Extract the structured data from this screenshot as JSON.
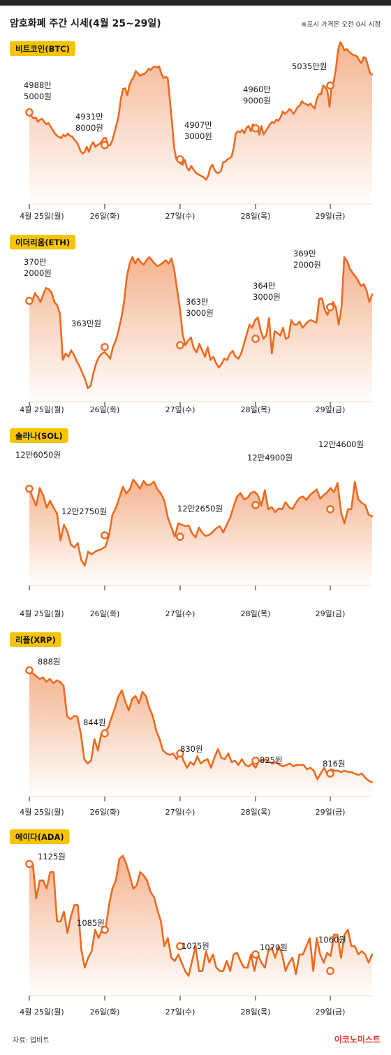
{
  "header": {
    "title": "암호화폐 주간 시세(4월 25~29일)",
    "note": "※표시 가격은 오전 0시 시점"
  },
  "footer": {
    "source": "자료: 업비트",
    "brand": "이코노미스트"
  },
  "colors": {
    "line": "#ec6a20",
    "area_top": "#f4b08a",
    "badge": "#f6c400",
    "topbar": "#2a2324"
  },
  "chart_data": [
    {
      "type": "area",
      "name": "비트코인(BTC)",
      "x_ticks": [
        "4월 25일(월)",
        "26일(화)",
        "27일(수)",
        "28일(목)",
        "29일(금)"
      ],
      "markers": [
        {
          "x": 0,
          "y": 49885000,
          "label": [
            "4988만",
            "5000원"
          ]
        },
        {
          "x": 1,
          "y": 49318000,
          "label": [
            "4931만",
            "8000원"
          ]
        },
        {
          "x": 2,
          "y": 49073000,
          "label": [
            "4907만",
            "3000원"
          ]
        },
        {
          "x": 3,
          "y": 49609000,
          "label": [
            "4960만",
            "9000원"
          ]
        },
        {
          "x": 4,
          "y": 50350000,
          "label": [
            "5035만원"
          ]
        }
      ],
      "ylim": [
        48300000,
        51200000
      ],
      "series": [
        49885000,
        49820000,
        49780000,
        49800000,
        49720000,
        49760000,
        49770000,
        49720000,
        49680000,
        49700000,
        49640000,
        49580000,
        49520000,
        49480000,
        49460000,
        49440000,
        49500000,
        49470000,
        49520000,
        49480000,
        49470000,
        49420000,
        49380000,
        49320000,
        49220000,
        49170000,
        49200000,
        49290000,
        49200000,
        49310000,
        49370000,
        49290000,
        49320000,
        49340000,
        49380000,
        49440000,
        49440000,
        49310000,
        49320000,
        49400000,
        49540000,
        49680000,
        49840000,
        50120000,
        50290000,
        50300000,
        50180000,
        50350000,
        50440000,
        50500000,
        50600000,
        50560000,
        50520000,
        50540000,
        50550000,
        50580000,
        50640000,
        50620000,
        50660000,
        50680000,
        50660000,
        50680000,
        50560000,
        50480000,
        50500000,
        50480000,
        50100000,
        49720000,
        49270000,
        49080000,
        49073000,
        49000000,
        48980000,
        49060000,
        48930000,
        48880000,
        48960000,
        48900000,
        48850000,
        48820000,
        48800000,
        48780000,
        48760000,
        48720000,
        48790000,
        48930000,
        48980000,
        48890000,
        48840000,
        48840000,
        48870000,
        49020000,
        49030000,
        49070000,
        49090000,
        49120000,
        49280000,
        49520000,
        49560000,
        49540000,
        49580000,
        49520000,
        49620000,
        49650000,
        49560000,
        49680000,
        49630000,
        49609000,
        49500000,
        49650000,
        49500000,
        49560000,
        49620000,
        49680000,
        49720000,
        49700000,
        49760000,
        49740000,
        49800000,
        49900000,
        49860000,
        49890000,
        49940000,
        49920000,
        49860000,
        49910000,
        49980000,
        50000000,
        50080000,
        50040000,
        50030000,
        50000000,
        50040000,
        49990000,
        49950000,
        50120000,
        50200000,
        50200000,
        50350000,
        50320000,
        50250000,
        49980000,
        50350000,
        50420000,
        50650000,
        50960000,
        51100000,
        51040000,
        50960000,
        50980000,
        50940000,
        50910000,
        50880000,
        50870000,
        50850000,
        50780000,
        50740000,
        50840000,
        50820000,
        50700000,
        50560000,
        50540000
      ]
    },
    {
      "type": "area",
      "name": "이더리움(ETH)",
      "x_ticks": [
        "4월 25일(월)",
        "26일(화)",
        "27일(수)",
        "28일(목)",
        "29일(금)"
      ],
      "markers": [
        {
          "x": 0,
          "y": 3702000,
          "label": [
            "370만",
            "2000원"
          ]
        },
        {
          "x": 1,
          "y": 3630000,
          "label": [
            "363만원"
          ]
        },
        {
          "x": 2,
          "y": 3633000,
          "label": [
            "363만",
            "3000원"
          ]
        },
        {
          "x": 3,
          "y": 3643000,
          "label": [
            "364만",
            "3000원"
          ]
        },
        {
          "x": 4,
          "y": 3692000,
          "label": [
            "369만",
            "2000원"
          ]
        }
      ],
      "ylim": [
        3545000,
        3795000
      ],
      "series": [
        3702000,
        3700000,
        3714000,
        3708000,
        3700000,
        3712000,
        3722000,
        3720000,
        3715000,
        3700000,
        3695000,
        3682000,
        3610000,
        3620000,
        3615000,
        3625000,
        3618000,
        3608000,
        3600000,
        3590000,
        3580000,
        3566000,
        3570000,
        3590000,
        3605000,
        3615000,
        3620000,
        3622000,
        3618000,
        3612000,
        3630000,
        3640000,
        3655000,
        3675000,
        3700000,
        3740000,
        3760000,
        3770000,
        3760000,
        3768000,
        3762000,
        3758000,
        3765000,
        3770000,
        3765000,
        3760000,
        3756000,
        3758000,
        3762000,
        3765000,
        3760000,
        3768000,
        3750000,
        3720000,
        3690000,
        3650000,
        3633000,
        3640000,
        3645000,
        3628000,
        3622000,
        3635000,
        3625000,
        3615000,
        3630000,
        3610000,
        3615000,
        3605000,
        3598000,
        3604000,
        3612000,
        3610000,
        3620000,
        3624000,
        3615000,
        3612000,
        3620000,
        3635000,
        3650000,
        3665000,
        3660000,
        3672000,
        3676000,
        3656000,
        3643000,
        3648000,
        3675000,
        3620000,
        3655000,
        3652000,
        3648000,
        3660000,
        3643000,
        3645000,
        3672000,
        3665000,
        3665000,
        3670000,
        3660000,
        3665000,
        3670000,
        3672000,
        3670000,
        3668000,
        3705000,
        3706000,
        3688000,
        3680000,
        3692000,
        3700000,
        3692000,
        3665000,
        3692000,
        3770000,
        3764000,
        3752000,
        3745000,
        3740000,
        3733000,
        3725000,
        3728000,
        3718000,
        3700000,
        3712000
      ]
    },
    {
      "type": "area",
      "name": "솔라나(SOL)",
      "x_ticks": [
        "4월 25일(월)",
        "26일(화)",
        "27일(수)",
        "28일(목)",
        "29일(금)"
      ],
      "markers": [
        {
          "x": 0,
          "y": 126050,
          "label": [
            "12만6050원"
          ]
        },
        {
          "x": 1,
          "y": 122750,
          "label": [
            "12만2750원"
          ]
        },
        {
          "x": 2,
          "y": 122650,
          "label": [
            "12만2650원"
          ]
        },
        {
          "x": 3,
          "y": 124900,
          "label": [
            "12만4900원"
          ]
        },
        {
          "x": 4,
          "y": 124600,
          "label": [
            "12만4600원"
          ]
        }
      ],
      "ylim": [
        119200,
        128500
      ],
      "series": [
        126050,
        125400,
        124850,
        126100,
        125600,
        124700,
        125200,
        124700,
        124300,
        122400,
        123500,
        123000,
        122100,
        121900,
        122200,
        121000,
        120600,
        121600,
        121400,
        121600,
        121700,
        121800,
        121950,
        122750,
        124200,
        124700,
        125400,
        126200,
        125700,
        126000,
        126700,
        126400,
        126050,
        126600,
        126300,
        126350,
        126550,
        126000,
        125700,
        125200,
        124000,
        123350,
        122650,
        123600,
        123500,
        123400,
        123450,
        122900,
        122600,
        123300,
        122900,
        122700,
        122800,
        123000,
        123250,
        123400,
        122950,
        123500,
        124000,
        124800,
        125500,
        125750,
        125300,
        125400,
        125750,
        125850,
        125600,
        124850,
        125950,
        124600,
        124750,
        124400,
        124650,
        124600,
        125100,
        124750,
        124600,
        125050,
        125400,
        125500,
        125250,
        125600,
        125800,
        126000,
        125350,
        125600,
        125800,
        126100,
        125800,
        126450,
        124400,
        123600,
        124600,
        124600,
        126550,
        125300,
        125050,
        124900,
        124200,
        124100
      ]
    },
    {
      "type": "area",
      "name": "리플(XRP)",
      "x_ticks": [
        "4월 25일(월)",
        "26일(화)",
        "27일(수)",
        "28일(목)",
        "29일(금)"
      ],
      "markers": [
        {
          "x": 0,
          "y": 888,
          "label": [
            "888원"
          ]
        },
        {
          "x": 1,
          "y": 844,
          "label": [
            "844원"
          ]
        },
        {
          "x": 2,
          "y": 830,
          "label": [
            "830원"
          ]
        },
        {
          "x": 3,
          "y": 825,
          "label": [
            "825원"
          ]
        },
        {
          "x": 4,
          "y": 816,
          "label": [
            "816원"
          ]
        }
      ],
      "ylim": [
        800,
        895
      ],
      "series": [
        888,
        886,
        884,
        882,
        883,
        880,
        882,
        879,
        881,
        880,
        877,
        856,
        854,
        856,
        856,
        844,
        826,
        823,
        825,
        840,
        832,
        844,
        845,
        848,
        855,
        862,
        870,
        874,
        866,
        860,
        868,
        870,
        865,
        873,
        870,
        862,
        856,
        846,
        840,
        832,
        830,
        829,
        830,
        826,
        831,
        825,
        820,
        824,
        822,
        828,
        823,
        825,
        826,
        820,
        827,
        833,
        827,
        826,
        830,
        824,
        825,
        822,
        826,
        822,
        821,
        823,
        820,
        825,
        825,
        826,
        824,
        823,
        824,
        822,
        821,
        822,
        823,
        821,
        822,
        822,
        822,
        819,
        820,
        818,
        812,
        816,
        820,
        815,
        819,
        818,
        818,
        817,
        818,
        817,
        817,
        816,
        815,
        816,
        813,
        811,
        810
      ]
    },
    {
      "type": "area",
      "name": "에이다(ADA)",
      "x_ticks": [
        "4월 25일(월)",
        "26일(화)",
        "27일(수)",
        "28일(목)",
        "29일(금)"
      ],
      "markers": [
        {
          "x": 0,
          "y": 1125,
          "label": [
            "1125원"
          ]
        },
        {
          "x": 1,
          "y": 1085,
          "label": [
            "1085원"
          ]
        },
        {
          "x": 2,
          "y": 1075,
          "label": [
            "1075원"
          ]
        },
        {
          "x": 3,
          "y": 1070,
          "label": [
            "1070원"
          ]
        },
        {
          "x": 4,
          "y": 1060,
          "label": [
            "1060원"
          ]
        }
      ],
      "ylim": [
        1045,
        1135
      ],
      "series": [
        1125,
        1125,
        1104,
        1115,
        1115,
        1110,
        1120,
        1120,
        1090,
        1090,
        1096,
        1083,
        1093,
        1100,
        1100,
        1073,
        1062,
        1068,
        1072,
        1085,
        1080,
        1085,
        1085,
        1100,
        1110,
        1115,
        1128,
        1130,
        1125,
        1118,
        1110,
        1112,
        1120,
        1118,
        1115,
        1108,
        1105,
        1097,
        1090,
        1075,
        1080,
        1068,
        1066,
        1070,
        1065,
        1060,
        1057,
        1066,
        1075,
        1060,
        1060,
        1072,
        1065,
        1070,
        1062,
        1060,
        1060,
        1066,
        1060,
        1070,
        1071,
        1066,
        1062,
        1062,
        1070,
        1060,
        1070,
        1065,
        1062,
        1072,
        1074,
        1068,
        1075,
        1070,
        1060,
        1065,
        1068,
        1058,
        1070,
        1070,
        1075,
        1080,
        1060,
        1080,
        1070,
        1065,
        1071,
        1069,
        1082,
        1082,
        1068,
        1082,
        1085,
        1075,
        1075,
        1070,
        1072,
        1070,
        1065,
        1070
      ]
    }
  ]
}
